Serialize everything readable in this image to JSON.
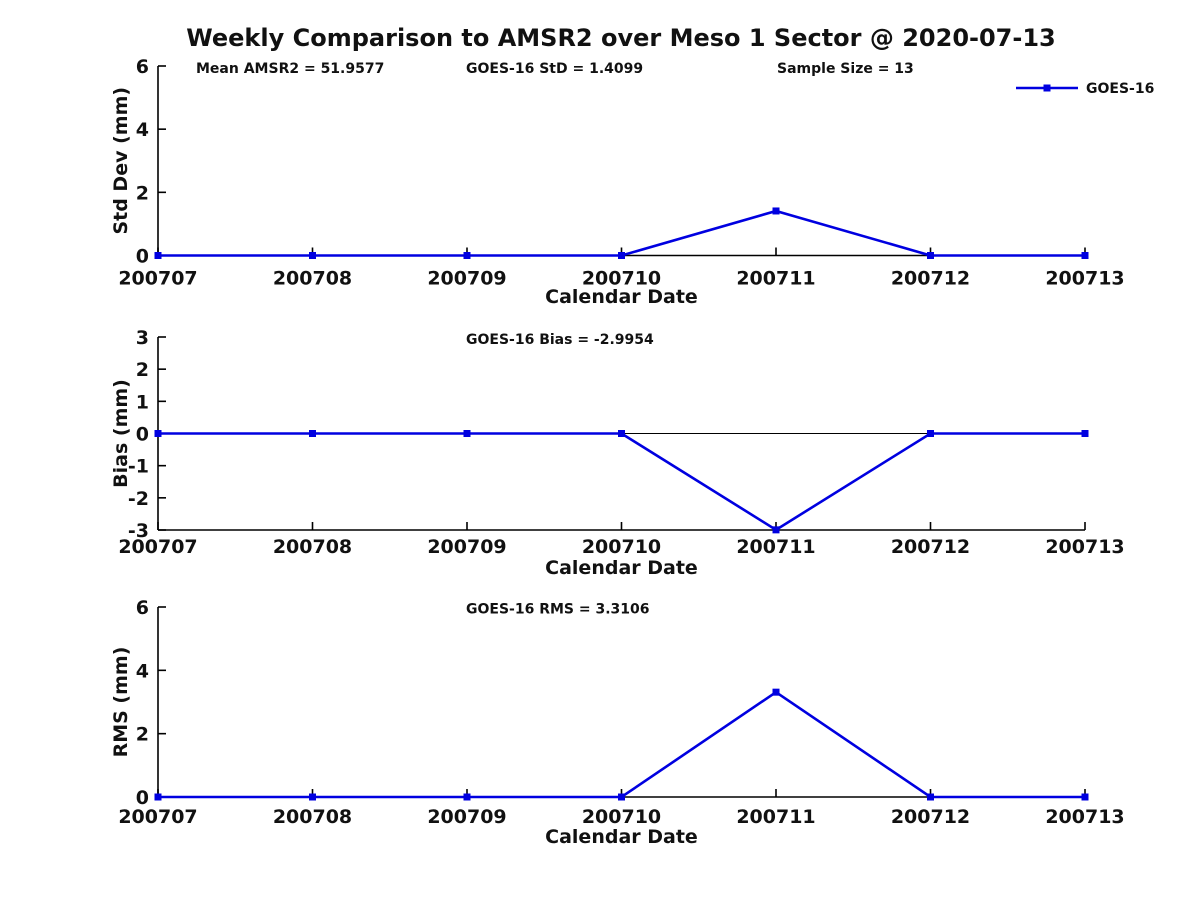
{
  "figure": {
    "title": "Weekly Comparison to AMSR2 over Meso 1 Sector @ 2020-07-13",
    "background_color": "#ffffff",
    "line_color": "#0000E0",
    "axis_color": "#000000",
    "text_color": "#111111"
  },
  "chart_data": [
    {
      "type": "line",
      "panel": "std-dev",
      "x_categories": [
        "200707",
        "200708",
        "200709",
        "200710",
        "200711",
        "200712",
        "200713"
      ],
      "series": [
        {
          "name": "GOES-16",
          "values": [
            0,
            0,
            0,
            0,
            1.4099,
            0,
            0
          ]
        }
      ],
      "xlabel": "Calendar Date",
      "ylabel": "Std Dev (mm)",
      "ylim": [
        0,
        6
      ],
      "yticks": [
        0,
        2,
        4,
        6
      ],
      "annotations": [
        "Mean AMSR2 = 51.9577",
        "GOES-16 StD = 1.4099",
        "Sample Size = 13"
      ],
      "legend": {
        "position": "top-right",
        "entries": [
          "GOES-16"
        ]
      },
      "grid": false,
      "marker": "square"
    },
    {
      "type": "line",
      "panel": "bias",
      "x_categories": [
        "200707",
        "200708",
        "200709",
        "200710",
        "200711",
        "200712",
        "200713"
      ],
      "series": [
        {
          "name": "GOES-16",
          "values": [
            0,
            0,
            0,
            0,
            -2.9954,
            0,
            0
          ]
        }
      ],
      "xlabel": "Calendar Date",
      "ylabel": "Bias (mm)",
      "ylim": [
        -3,
        3
      ],
      "yticks": [
        -3,
        -2,
        -1,
        0,
        1,
        2,
        3
      ],
      "annotations": [
        "GOES-16 Bias  = -2.9954"
      ],
      "legend": null,
      "grid": false,
      "zero_line": true,
      "marker": "square"
    },
    {
      "type": "line",
      "panel": "rms",
      "x_categories": [
        "200707",
        "200708",
        "200709",
        "200710",
        "200711",
        "200712",
        "200713"
      ],
      "series": [
        {
          "name": "GOES-16",
          "values": [
            0,
            0,
            0,
            0,
            3.3106,
            0,
            0
          ]
        }
      ],
      "xlabel": "Calendar Date",
      "ylabel": "RMS (mm)",
      "ylim": [
        0,
        6
      ],
      "yticks": [
        0,
        2,
        4,
        6
      ],
      "annotations": [
        "GOES-16 RMS = 3.3106"
      ],
      "legend": null,
      "grid": false,
      "marker": "square"
    }
  ]
}
